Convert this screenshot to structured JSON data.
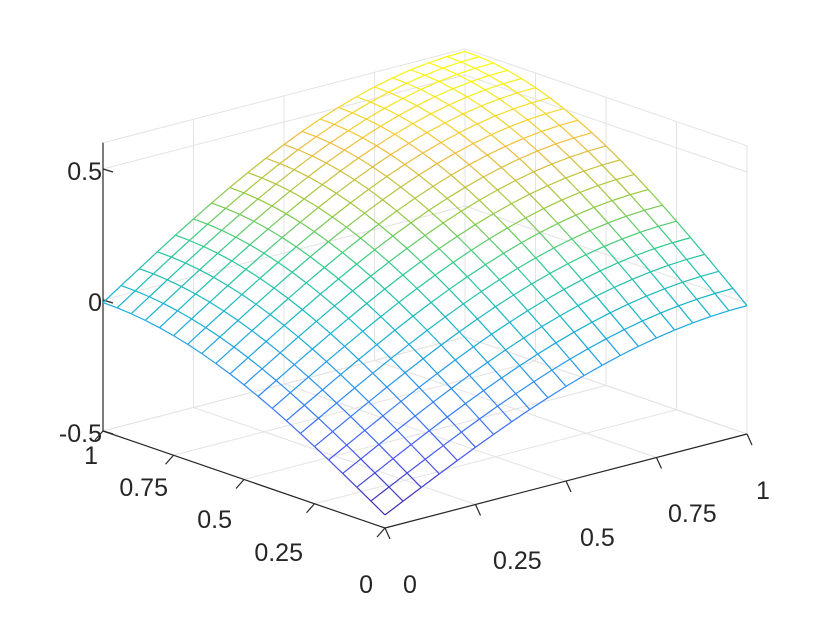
{
  "chart_data": {
    "type": "surface",
    "title": "",
    "xlabel": "",
    "ylabel": "",
    "zlabel": "",
    "xlim": [
      0,
      1
    ],
    "ylim": [
      0,
      1
    ],
    "zlim": [
      -0.5,
      0.6
    ],
    "grid": true,
    "colormap": "parula",
    "x_ticks": [
      "0",
      "0.25",
      "0.5",
      "0.75",
      "1"
    ],
    "y_ticks": [
      "0",
      "0.25",
      "0.5",
      "0.75",
      "1"
    ],
    "z_ticks": [
      "-0.5",
      "0",
      "0.5"
    ],
    "mesh_x": [
      0,
      0.05,
      0.1,
      0.15,
      0.2,
      0.25,
      0.3,
      0.35,
      0.4,
      0.45,
      0.5,
      0.55,
      0.6,
      0.65,
      0.7,
      0.75,
      0.8,
      0.85,
      0.9,
      0.95,
      1
    ],
    "mesh_y": [
      0,
      0.05,
      0.1,
      0.15,
      0.2,
      0.25,
      0.3,
      0.35,
      0.4,
      0.45,
      0.5,
      0.55,
      0.6,
      0.65,
      0.7,
      0.75,
      0.8,
      0.85,
      0.9,
      0.95,
      1
    ],
    "z_corners": {
      "x0_y0": -0.45,
      "x1_y0": -0.01,
      "x0_y1": -0.01,
      "x1_y1": 0.59
    },
    "z_formula": "z = sin(pi/2 * (x + y)/2 ...) approx: z = -0.45 + 0.44*(sin(pi/2*x)+sin(pi/2*y)) + 0.16*sin(pi/2*x)*sin(pi/2*y)"
  }
}
